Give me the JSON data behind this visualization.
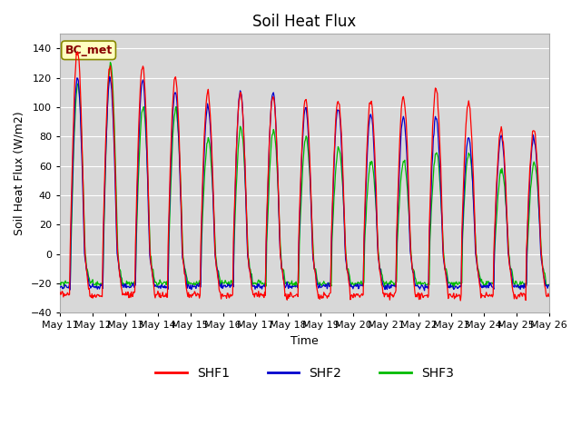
{
  "title": "Soil Heat Flux",
  "xlabel": "Time",
  "ylabel": "Soil Heat Flux (W/m2)",
  "ylim": [
    -40,
    150
  ],
  "yticks": [
    -40,
    -20,
    0,
    20,
    40,
    60,
    80,
    100,
    120,
    140
  ],
  "colors": {
    "SHF1": "#ff0000",
    "SHF2": "#0000cd",
    "SHF3": "#00bb00"
  },
  "annotation_text": "BC_met",
  "annotation_box_facecolor": "#ffffc0",
  "annotation_box_edgecolor": "#888800",
  "annotation_text_color": "#880000",
  "plot_bg_color": "#d8d8d8",
  "fig_bg_color": "#ffffff",
  "grid_color": "#ffffff",
  "n_days": 15,
  "start_day": 11,
  "xtick_labels": [
    "May 11",
    "May 12",
    "May 13",
    "May 14",
    "May 15",
    "May 16",
    "May 17",
    "May 18",
    "May 19",
    "May 20",
    "May 21",
    "May 22",
    "May 23",
    "May 24",
    "May 25",
    "May 26"
  ],
  "figsize": [
    6.4,
    4.8
  ],
  "dpi": 100,
  "title_fontsize": 12,
  "label_fontsize": 9,
  "tick_fontsize": 8,
  "line_width": 0.9
}
